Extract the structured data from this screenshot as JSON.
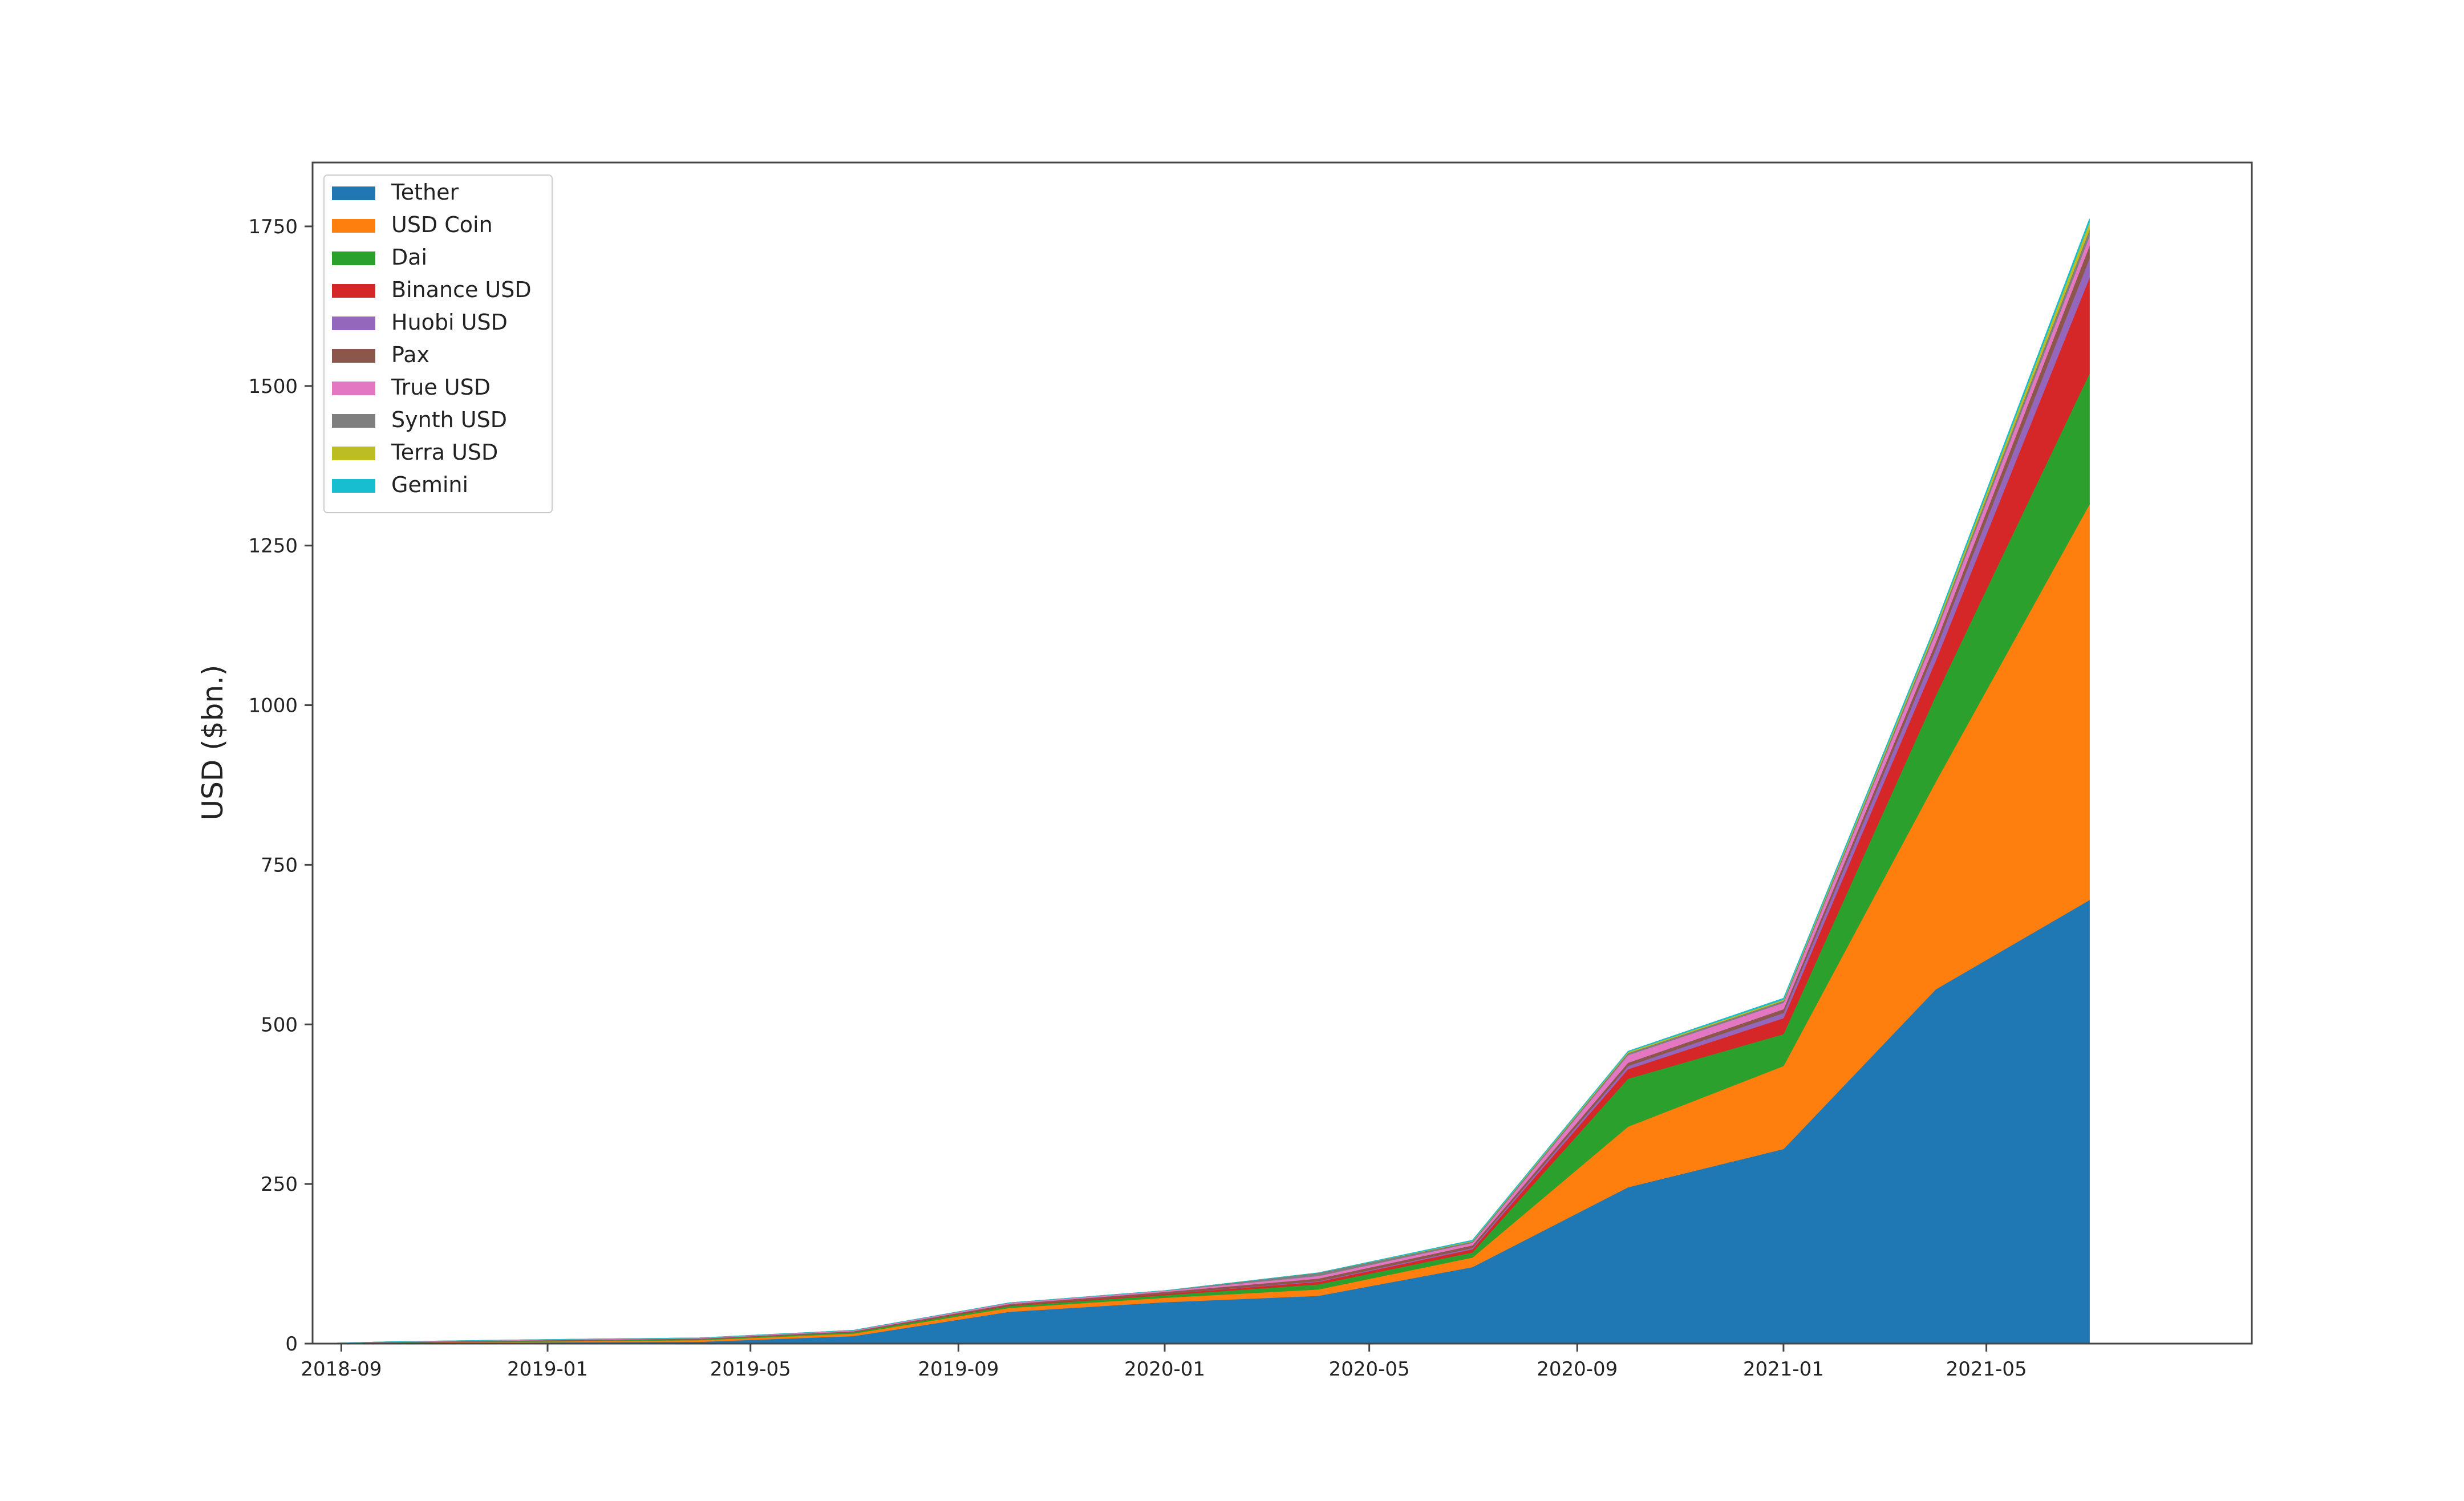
{
  "chart_data": {
    "type": "area",
    "stacked": true,
    "title": "",
    "xlabel": "",
    "ylabel": "USD ($bn.)",
    "ylim": [
      0,
      1850
    ],
    "xlim": [
      "2018-08-15",
      "2021-10-05"
    ],
    "yticks": [
      0,
      250,
      500,
      750,
      1000,
      1250,
      1500,
      1750
    ],
    "ytick_labels": [
      "0",
      "250",
      "500",
      "750",
      "1000",
      "1250",
      "1500",
      "1750"
    ],
    "xticks": [
      "2018-09-01",
      "2019-01-01",
      "2019-05-01",
      "2019-09-01",
      "2020-01-01",
      "2020-05-01",
      "2020-09-01",
      "2021-01-01",
      "2021-05-01"
    ],
    "xtick_labels": [
      "2018-09",
      "2019-01",
      "2019-05",
      "2019-09",
      "2020-01",
      "2020-05",
      "2020-09",
      "2021-01",
      "2021-05"
    ],
    "grid": false,
    "legend_position": "top-left",
    "x": [
      "2018-08-15",
      "2018-10-01",
      "2019-01-01",
      "2019-04-01",
      "2019-07-01",
      "2019-10-01",
      "2020-01-01",
      "2020-04-01",
      "2020-07-01",
      "2020-10-01",
      "2021-01-01",
      "2021-04-01",
      "2021-07-01"
    ],
    "series": [
      {
        "name": "Tether",
        "color": "#1f77b4",
        "values": [
          0,
          1,
          2,
          3,
          12,
          50,
          65,
          75,
          120,
          245,
          305,
          555,
          695
        ]
      },
      {
        "name": "USD Coin",
        "color": "#ff7f0e",
        "values": [
          0,
          0.5,
          1.5,
          2.5,
          4,
          6,
          7,
          10,
          15,
          95,
          130,
          325,
          620
        ]
      },
      {
        "name": "Dai",
        "color": "#2ca02c",
        "values": [
          0,
          0.5,
          1,
          1.5,
          2,
          3,
          4,
          8,
          8,
          75,
          50,
          135,
          205
        ]
      },
      {
        "name": "Binance USD",
        "color": "#d62728",
        "values": [
          0,
          0,
          0,
          0,
          0,
          1,
          2,
          4,
          5,
          15,
          25,
          55,
          150
        ]
      },
      {
        "name": "Huobi USD",
        "color": "#9467bd",
        "values": [
          0,
          0,
          0,
          0,
          0,
          0,
          0,
          1,
          2,
          5,
          8,
          18,
          30
        ]
      },
      {
        "name": "Pax",
        "color": "#8c564b",
        "values": [
          0,
          0.5,
          1,
          1,
          1.5,
          2,
          3,
          4,
          4,
          5,
          6,
          10,
          20
        ]
      },
      {
        "name": "True USD",
        "color": "#e377c2",
        "values": [
          0,
          0.5,
          1,
          1,
          1.5,
          2,
          2,
          4,
          4,
          12,
          10,
          15,
          15
        ]
      },
      {
        "name": "Synth USD",
        "color": "#7f7f7f",
        "values": [
          0,
          0,
          0,
          0,
          0,
          0,
          0,
          5,
          2,
          3,
          3,
          5,
          10
        ]
      },
      {
        "name": "Terra USD",
        "color": "#bcbd22",
        "values": [
          0,
          0,
          0,
          0,
          0,
          0,
          0,
          0,
          1,
          2,
          2,
          5,
          12
        ]
      },
      {
        "name": "Gemini",
        "color": "#17becf",
        "values": [
          0,
          0,
          0,
          0,
          0,
          0,
          0,
          0,
          1,
          1,
          2,
          3,
          5
        ]
      }
    ]
  }
}
